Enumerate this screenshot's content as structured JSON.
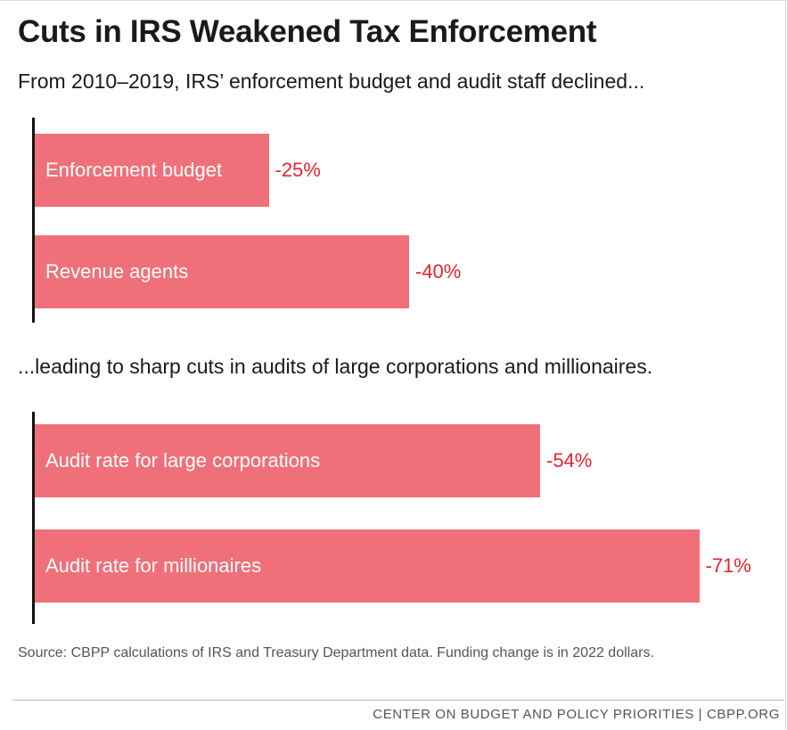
{
  "title": "Cuts in IRS Weakened Tax Enforcement",
  "subtitle_1": "From 2010–2019, IRS’ enforcement budget and audit staff declined...",
  "subtitle_2": "...leading to sharp cuts in audits of large corporations and millionaires.",
  "source": "Source: CBPP calculations of IRS and Treasury Department data. Funding change is in 2022 dollars.",
  "footer": "CENTER ON BUDGET AND POLICY PRIORITIES | CBPP.ORG",
  "colors": {
    "bar": "#f07079",
    "value_text": "#e8232f",
    "axis": "#111111"
  },
  "chart_data": [
    {
      "type": "bar",
      "orientation": "horizontal",
      "categories": [
        "Enforcement budget",
        "Revenue agents"
      ],
      "values": [
        -25,
        -40
      ],
      "value_labels": [
        "-25%",
        "-40%"
      ],
      "xlim": [
        0,
        -80
      ]
    },
    {
      "type": "bar",
      "orientation": "horizontal",
      "categories": [
        "Audit rate for large corporations",
        "Audit rate for millionaires"
      ],
      "values": [
        -54,
        -71
      ],
      "value_labels": [
        "-54%",
        "-71%"
      ],
      "xlim": [
        0,
        -80
      ]
    }
  ]
}
